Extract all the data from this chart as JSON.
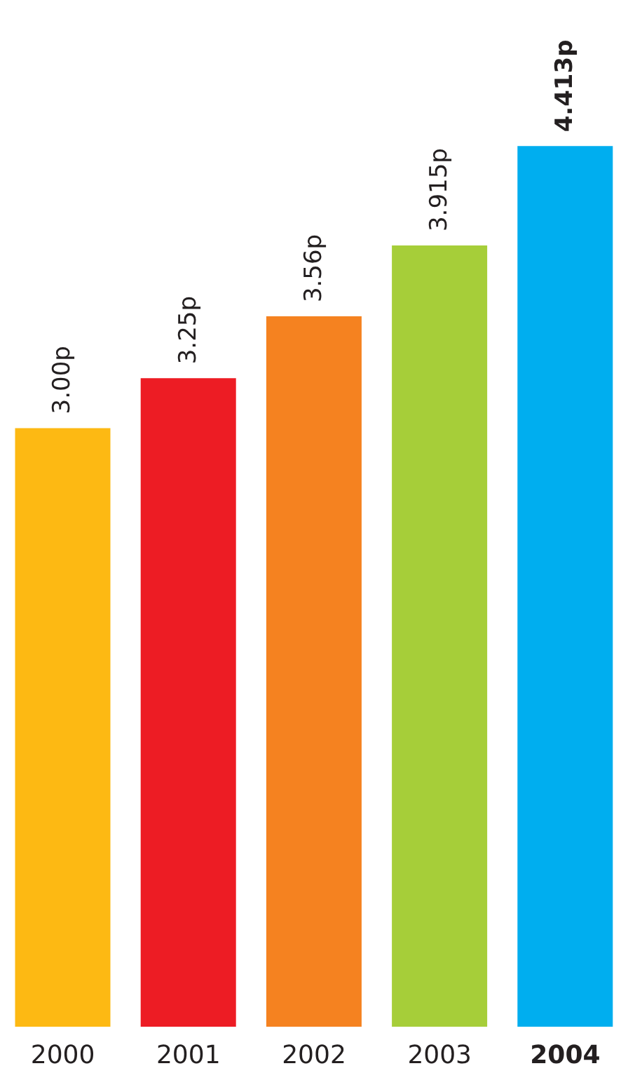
{
  "chart_data": {
    "type": "bar",
    "categories": [
      "2000",
      "2001",
      "2002",
      "2003",
      "2004"
    ],
    "values": [
      3.0,
      3.25,
      3.56,
      3.915,
      4.413
    ],
    "colors": [
      "#fdb913",
      "#ed1c24",
      "#f58220",
      "#a6ce39",
      "#00aeef"
    ],
    "value_labels": [
      "3.00p",
      "3.25p",
      "3.56p",
      "3.915p",
      "4.413p"
    ],
    "grid": false,
    "legend": false
  }
}
